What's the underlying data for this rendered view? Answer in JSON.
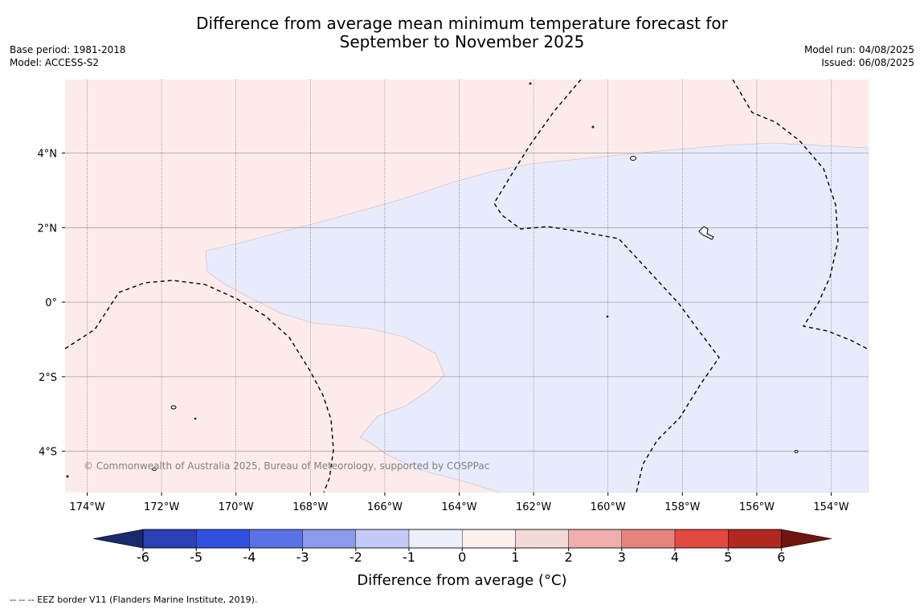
{
  "title": {
    "line1": "Difference from average mean minimum temperature forecast for",
    "line2": "September to November 2025"
  },
  "meta_left": {
    "base_period": "Base period: 1981-2018",
    "model": "Model: ACCESS-S2"
  },
  "meta_right": {
    "model_run": "Model run: 04/08/2025",
    "issued": "Issued: 06/08/2025"
  },
  "map": {
    "lon_labels": [
      "174°W",
      "172°W",
      "170°W",
      "168°W",
      "166°W",
      "164°W",
      "162°W",
      "160°W",
      "158°W",
      "156°W",
      "154°W"
    ],
    "lat_labels": [
      "4°N",
      "2°N",
      "0°",
      "2°S",
      "4°S"
    ],
    "copyright": "© Commonwealth of Australia 2025, Bureau of Meteorology, supported by COSPPac",
    "colors": {
      "warm_anomaly_fill": "#fcebea",
      "cool_anomaly_fill": "#e8ebfb",
      "grid": "#a0a0a0"
    }
  },
  "colorbar": {
    "label": "Difference from average (°C)",
    "ticks": [
      "-6",
      "-5",
      "-4",
      "-3",
      "-2",
      "-1",
      "0",
      "1",
      "2",
      "3",
      "4",
      "5",
      "6"
    ],
    "colors": [
      "#1a2a6c",
      "#2a40b4",
      "#3050e0",
      "#5a72e6",
      "#8a9bec",
      "#c4caf7",
      "#eceef9",
      "#fdf0ee",
      "#f2dad6",
      "#f0aeac",
      "#e8847e",
      "#e04a40",
      "#b0281f",
      "#70160e"
    ]
  },
  "footnote": "--  --  -- EEZ border V11 (Flanders Marine Institute, 2019)."
}
